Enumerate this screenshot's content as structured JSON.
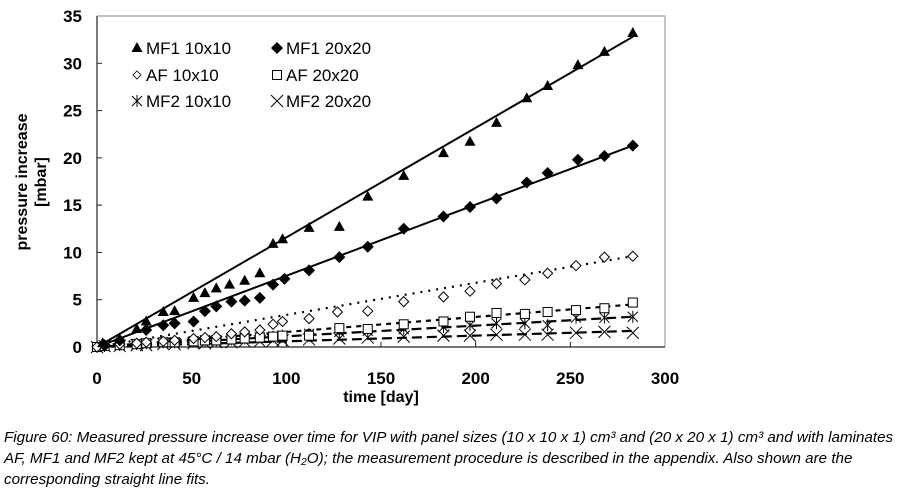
{
  "chart_data": {
    "type": "scatter",
    "title": "",
    "xlabel": "time [day]",
    "ylabel": "pressure increase [mbar]",
    "ylabel_lines": [
      "pressure increase",
      "[mbar]"
    ],
    "xlim": [
      0,
      300
    ],
    "ylim": [
      0,
      35
    ],
    "xticks": [
      0,
      50,
      100,
      150,
      200,
      250,
      300
    ],
    "yticks": [
      0,
      5,
      10,
      15,
      20,
      25,
      30,
      35
    ],
    "grid": false,
    "legend_position": "top-left",
    "series": [
      {
        "name": "MF1 10x10",
        "marker": "triangle-filled",
        "fit_style": "solid",
        "x": [
          3,
          12,
          21,
          26,
          35,
          41,
          51,
          57,
          63,
          70,
          78,
          86,
          93,
          98,
          112,
          128,
          143,
          162,
          183,
          197,
          211,
          227,
          238,
          254,
          268,
          283
        ],
        "y": [
          0.4,
          0.8,
          1.9,
          2.7,
          3.7,
          3.8,
          5.2,
          5.7,
          6.2,
          6.6,
          7.0,
          7.8,
          10.9,
          11.4,
          12.6,
          12.7,
          15.9,
          18.1,
          20.5,
          21.7,
          23.7,
          26.3,
          27.6,
          29.8,
          31.2,
          33.2
        ],
        "fit": [
          [
            0,
            0
          ],
          [
            283,
            32.8
          ]
        ]
      },
      {
        "name": "MF1 20x20",
        "marker": "diamond-filled",
        "fit_style": "solid",
        "x": [
          4,
          12,
          26,
          35,
          41,
          51,
          57,
          63,
          71,
          78,
          86,
          93,
          99,
          112,
          128,
          143,
          162,
          183,
          197,
          211,
          227,
          238,
          254,
          268,
          283
        ],
        "y": [
          0.2,
          0.7,
          1.8,
          2.3,
          2.5,
          2.7,
          3.8,
          4.3,
          4.8,
          4.9,
          5.2,
          6.6,
          7.2,
          8.1,
          9.5,
          10.6,
          12.5,
          13.8,
          14.8,
          15.7,
          17.4,
          18.4,
          19.8,
          20.2,
          21.3
        ],
        "fit": [
          [
            0,
            0
          ],
          [
            283,
            21.3
          ]
        ]
      },
      {
        "name": "AF  10x10",
        "marker": "diamond-open",
        "fit_style": "dotted",
        "x": [
          0,
          4,
          12,
          21,
          26,
          35,
          41,
          51,
          57,
          63,
          71,
          78,
          86,
          93,
          98,
          112,
          127,
          143,
          162,
          183,
          197,
          211,
          226,
          238,
          253,
          268,
          283
        ],
        "y": [
          0,
          0.1,
          0.3,
          0.4,
          0.5,
          0.6,
          0.7,
          0.9,
          1.0,
          1.1,
          1.4,
          1.6,
          1.8,
          2.4,
          2.7,
          3.0,
          3.7,
          3.8,
          4.8,
          5.3,
          5.9,
          6.7,
          7.1,
          7.8,
          8.6,
          9.5,
          9.6
        ],
        "fit": [
          [
            0,
            0
          ],
          [
            283,
            9.6
          ]
        ]
      },
      {
        "name": "AF  20x20",
        "marker": "square-open",
        "fit_style": "dashed",
        "x": [
          0,
          4,
          12,
          21,
          26,
          35,
          41,
          51,
          57,
          63,
          71,
          78,
          86,
          93,
          98,
          112,
          128,
          143,
          162,
          183,
          197,
          211,
          226,
          238,
          253,
          268,
          283
        ],
        "y": [
          0,
          0.1,
          0.2,
          0.3,
          0.4,
          0.5,
          0.5,
          0.6,
          0.7,
          0.7,
          0.8,
          0.9,
          1.0,
          1.1,
          1.2,
          1.2,
          2.0,
          1.9,
          2.4,
          2.7,
          3.2,
          3.6,
          3.5,
          3.7,
          3.9,
          4.1,
          4.7
        ],
        "fit": [
          [
            0,
            0
          ],
          [
            283,
            4.5
          ]
        ]
      },
      {
        "name": "MF2 10x10",
        "marker": "asterisk",
        "fit_style": "dashed-long",
        "x": [
          0,
          4,
          12,
          21,
          26,
          35,
          41,
          51,
          57,
          63,
          71,
          78,
          86,
          93,
          98,
          112,
          128,
          143,
          162,
          183,
          197,
          211,
          226,
          238,
          253,
          268,
          283
        ],
        "y": [
          0,
          0.1,
          0.2,
          0.3,
          0.4,
          0.5,
          0.5,
          0.6,
          0.7,
          0.7,
          0.8,
          0.9,
          1.0,
          1.1,
          1.2,
          1.4,
          1.6,
          1.7,
          1.9,
          2.1,
          2.3,
          2.5,
          2.5,
          2.3,
          3.1,
          3.1,
          3.2
        ],
        "fit": [
          [
            0,
            0
          ],
          [
            283,
            3.2
          ]
        ]
      },
      {
        "name": "MF2 20x20",
        "marker": "cross",
        "fit_style": "dashed-long",
        "x": [
          0,
          4,
          12,
          21,
          26,
          35,
          41,
          51,
          57,
          63,
          71,
          78,
          86,
          93,
          98,
          112,
          128,
          143,
          162,
          183,
          197,
          211,
          226,
          238,
          253,
          268,
          283
        ],
        "y": [
          0,
          0.1,
          0.1,
          0.2,
          0.2,
          0.3,
          0.3,
          0.4,
          0.4,
          0.5,
          0.5,
          0.6,
          0.6,
          0.7,
          0.7,
          0.8,
          0.9,
          1.0,
          1.1,
          1.2,
          1.2,
          1.3,
          1.3,
          1.3,
          1.5,
          1.6,
          1.5
        ],
        "fit": [
          [
            0,
            0
          ],
          [
            283,
            1.7
          ]
        ]
      }
    ]
  },
  "caption": "Figure 60: Measured pressure increase over time for VIP with panel sizes (10 x 10 x 1) cm³ and (20 x 20 x 1) cm³ and with laminates AF, MF1 and MF2 kept at 45°C / 14 mbar (H₂O); the measurement procedure is described in the appendix. Also shown are the corresponding straight line fits."
}
